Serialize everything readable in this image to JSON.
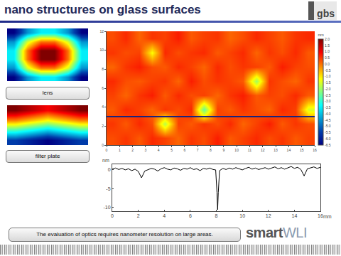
{
  "header": {
    "title": "nano structures on glass surfaces",
    "logo": "gbs"
  },
  "thumbnails": [
    {
      "label": "lens",
      "cells": [
        [
          0.1,
          0.3,
          0.4,
          0.4,
          0.3,
          0.1
        ],
        [
          0.3,
          0.6,
          0.75,
          0.75,
          0.6,
          0.3
        ],
        [
          0.4,
          0.75,
          0.95,
          0.95,
          0.75,
          0.4
        ],
        [
          0.4,
          0.75,
          0.95,
          0.95,
          0.75,
          0.4
        ],
        [
          0.3,
          0.6,
          0.75,
          0.75,
          0.6,
          0.3
        ],
        [
          0.1,
          0.3,
          0.4,
          0.4,
          0.3,
          0.1
        ]
      ]
    },
    {
      "label": "filter plate",
      "cells": [
        [
          0.2,
          0.15,
          0.1,
          0.15,
          0.2
        ],
        [
          0.45,
          0.4,
          0.35,
          0.4,
          0.45
        ],
        [
          0.7,
          0.65,
          0.6,
          0.65,
          0.7
        ],
        [
          0.9,
          0.85,
          0.8,
          0.85,
          0.9
        ]
      ]
    }
  ],
  "chart_data": [
    {
      "type": "heatmap",
      "xlim": [
        0,
        16
      ],
      "xticks": [
        0,
        1,
        2,
        3,
        4,
        5,
        6,
        7,
        8,
        9,
        10,
        11,
        12,
        13,
        14,
        15,
        16
      ],
      "ylim": [
        0,
        12
      ],
      "yticks": [
        0,
        2,
        4,
        6,
        8,
        10,
        12
      ],
      "cells": [
        [
          0.3,
          0.5,
          0.2,
          0.6,
          0.4,
          0.1,
          0.5,
          0.3,
          0.7,
          0.2,
          0.4,
          0.6,
          0.3,
          0.5,
          0.2,
          0.4
        ],
        [
          0.5,
          0.2,
          0.6,
          0.3,
          -1.8,
          0.4,
          0.2,
          0.5,
          0.3,
          0.6,
          0.1,
          0.4,
          0.7,
          0.2,
          0.5,
          0.3
        ],
        [
          0.2,
          0.6,
          0.4,
          0.1,
          0.5,
          0.3,
          0.6,
          -2.5,
          0.4,
          0.2,
          0.5,
          0.3,
          0.1,
          0.6,
          0.4,
          -1.5
        ],
        [
          0.4,
          0.1,
          0.5,
          0.7,
          0.2,
          0.6,
          0.3,
          0.4,
          0.1,
          0.5,
          0.7,
          0.2,
          0.4,
          0.3,
          0.6,
          0.2
        ],
        [
          0.6,
          0.3,
          0.2,
          0.4,
          0.5,
          0.1,
          0.7,
          0.3,
          0.5,
          0.4,
          0.2,
          -2.0,
          0.5,
          0.3,
          0.1,
          0.5
        ],
        [
          0.1,
          0.5,
          0.7,
          0.3,
          0.2,
          0.6,
          0.4,
          0.1,
          0.6,
          0.3,
          0.5,
          0.4,
          0.2,
          0.7,
          0.4,
          0.3
        ],
        [
          0.5,
          0.3,
          0.4,
          -1.2,
          0.6,
          0.3,
          0.5,
          0.6,
          0.2,
          0.4,
          0.6,
          0.1,
          0.5,
          0.3,
          0.6,
          0.2
        ],
        [
          0.3,
          0.6,
          0.1,
          0.5,
          0.4,
          0.7,
          0.2,
          0.4,
          0.5,
          0.1,
          0.3,
          0.6,
          0.4,
          0.2,
          0.5,
          0.6
        ]
      ],
      "colorbar": {
        "unit": "nm",
        "range": [
          -6.5,
          2.0
        ],
        "ticks": [
          {
            "value": 2,
            "label": "2.0"
          },
          {
            "value": 1.5,
            "label": "1.5"
          },
          {
            "value": 1,
            "label": "1.0"
          },
          {
            "value": 0.5,
            "label": "0.5"
          },
          {
            "value": 0,
            "label": "0.0"
          },
          {
            "value": -0.5,
            "label": "-0.5"
          },
          {
            "value": -1,
            "label": "-1.0"
          },
          {
            "value": -1.5,
            "label": "-1.5"
          },
          {
            "value": -2,
            "label": "-2.0"
          },
          {
            "value": -2.5,
            "label": "-2.5"
          },
          {
            "value": -3,
            "label": "-3.0"
          },
          {
            "value": -3.5,
            "label": "-3.5"
          },
          {
            "value": -4,
            "label": "-4.0"
          },
          {
            "value": -4.5,
            "label": "-4.5"
          },
          {
            "value": -5,
            "label": "-5.0"
          },
          {
            "value": -5.5,
            "label": "-5.5"
          },
          {
            "value": -6,
            "label": "-6.0"
          },
          {
            "value": -6.5,
            "label": "-6.5"
          }
        ]
      },
      "profile_at": 3
    },
    {
      "type": "line",
      "x_unit": "mm",
      "y_unit": "nm",
      "color": "#000000",
      "x": [
        0,
        0.25,
        0.5,
        0.75,
        1,
        1.25,
        1.5,
        1.75,
        2,
        2.25,
        2.5,
        2.75,
        3,
        3.25,
        3.5,
        3.75,
        4,
        4.25,
        4.5,
        4.75,
        5,
        5.25,
        5.5,
        5.75,
        6,
        6.25,
        6.5,
        6.75,
        7,
        7.25,
        7.5,
        7.75,
        7.95,
        8.05,
        8.1,
        8.15,
        8.25,
        8.5,
        8.75,
        9,
        9.25,
        9.5,
        9.75,
        10,
        10.25,
        10.5,
        10.75,
        11,
        11.25,
        11.5,
        11.75,
        12,
        12.25,
        12.5,
        12.75,
        13,
        13.25,
        13.5,
        13.75,
        14,
        14.25,
        14.5,
        14.75,
        15,
        15.25,
        15.5,
        15.75,
        16
      ],
      "values": [
        0.2,
        0.5,
        0.1,
        0.4,
        0.0,
        0.3,
        -0.2,
        0.2,
        -0.4,
        -2.1,
        -0.3,
        0.1,
        0.4,
        0.2,
        -0.3,
        0.3,
        0.6,
        0.2,
        0.0,
        0.5,
        0.3,
        -0.1,
        0.4,
        0.2,
        0.6,
        0.1,
        0.3,
        -0.2,
        0.4,
        0.2,
        0.5,
        0.1,
        0.0,
        -6.0,
        -10.6,
        -6.0,
        -0.2,
        0.4,
        0.1,
        0.5,
        0.2,
        0.6,
        0.3,
        0.0,
        0.4,
        0.7,
        0.2,
        0.5,
        0.1,
        0.4,
        0.6,
        0.2,
        0.5,
        0.8,
        0.3,
        0.6,
        0.2,
        0.5,
        0.9,
        0.4,
        0.7,
        0.1,
        -1.6,
        0.3,
        0.6,
        0.8,
        0.4,
        0.7
      ],
      "xlim": [
        0,
        16
      ],
      "xticks": [
        0,
        2,
        4,
        6,
        8,
        10,
        12,
        14,
        16
      ],
      "ylim": [
        -11,
        1.5
      ],
      "yticks": [
        0,
        -5,
        -10
      ]
    }
  ],
  "caption": "The evaluation of optics requires nanometer resolution on large areas.",
  "brand": {
    "bold": "smart",
    "light": "WLI"
  }
}
